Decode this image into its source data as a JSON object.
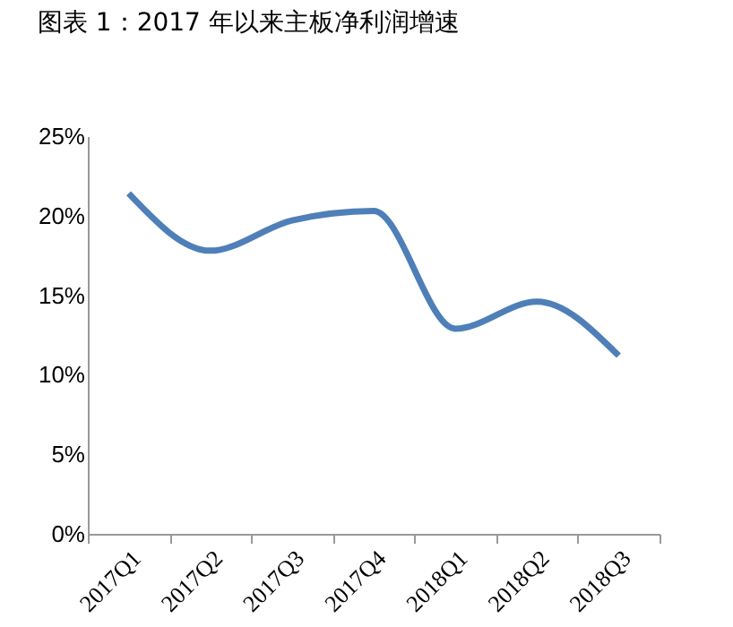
{
  "chart_data": {
    "type": "line",
    "title": "图表 1：2017 年以来主板净利润增速",
    "categories": [
      "2017Q1",
      "2017Q2",
      "2017Q3",
      "2017Q4",
      "2018Q1",
      "2018Q2",
      "2018Q3"
    ],
    "series": [
      {
        "color": "#4f7fb8",
        "values": [
          21.4,
          17.8,
          19.7,
          20.3,
          12.9,
          14.6,
          11.2
        ]
      }
    ],
    "ylim": [
      0,
      25
    ],
    "yticks": [
      {
        "value": 0,
        "label": "0%"
      },
      {
        "value": 5,
        "label": "5%"
      },
      {
        "value": 10,
        "label": "10%"
      },
      {
        "value": 15,
        "label": "15%"
      },
      {
        "value": 20,
        "label": "20%"
      },
      {
        "value": 25,
        "label": "25%"
      }
    ],
    "grid": false,
    "legend": false,
    "marker": "none",
    "line_style": "solid"
  }
}
